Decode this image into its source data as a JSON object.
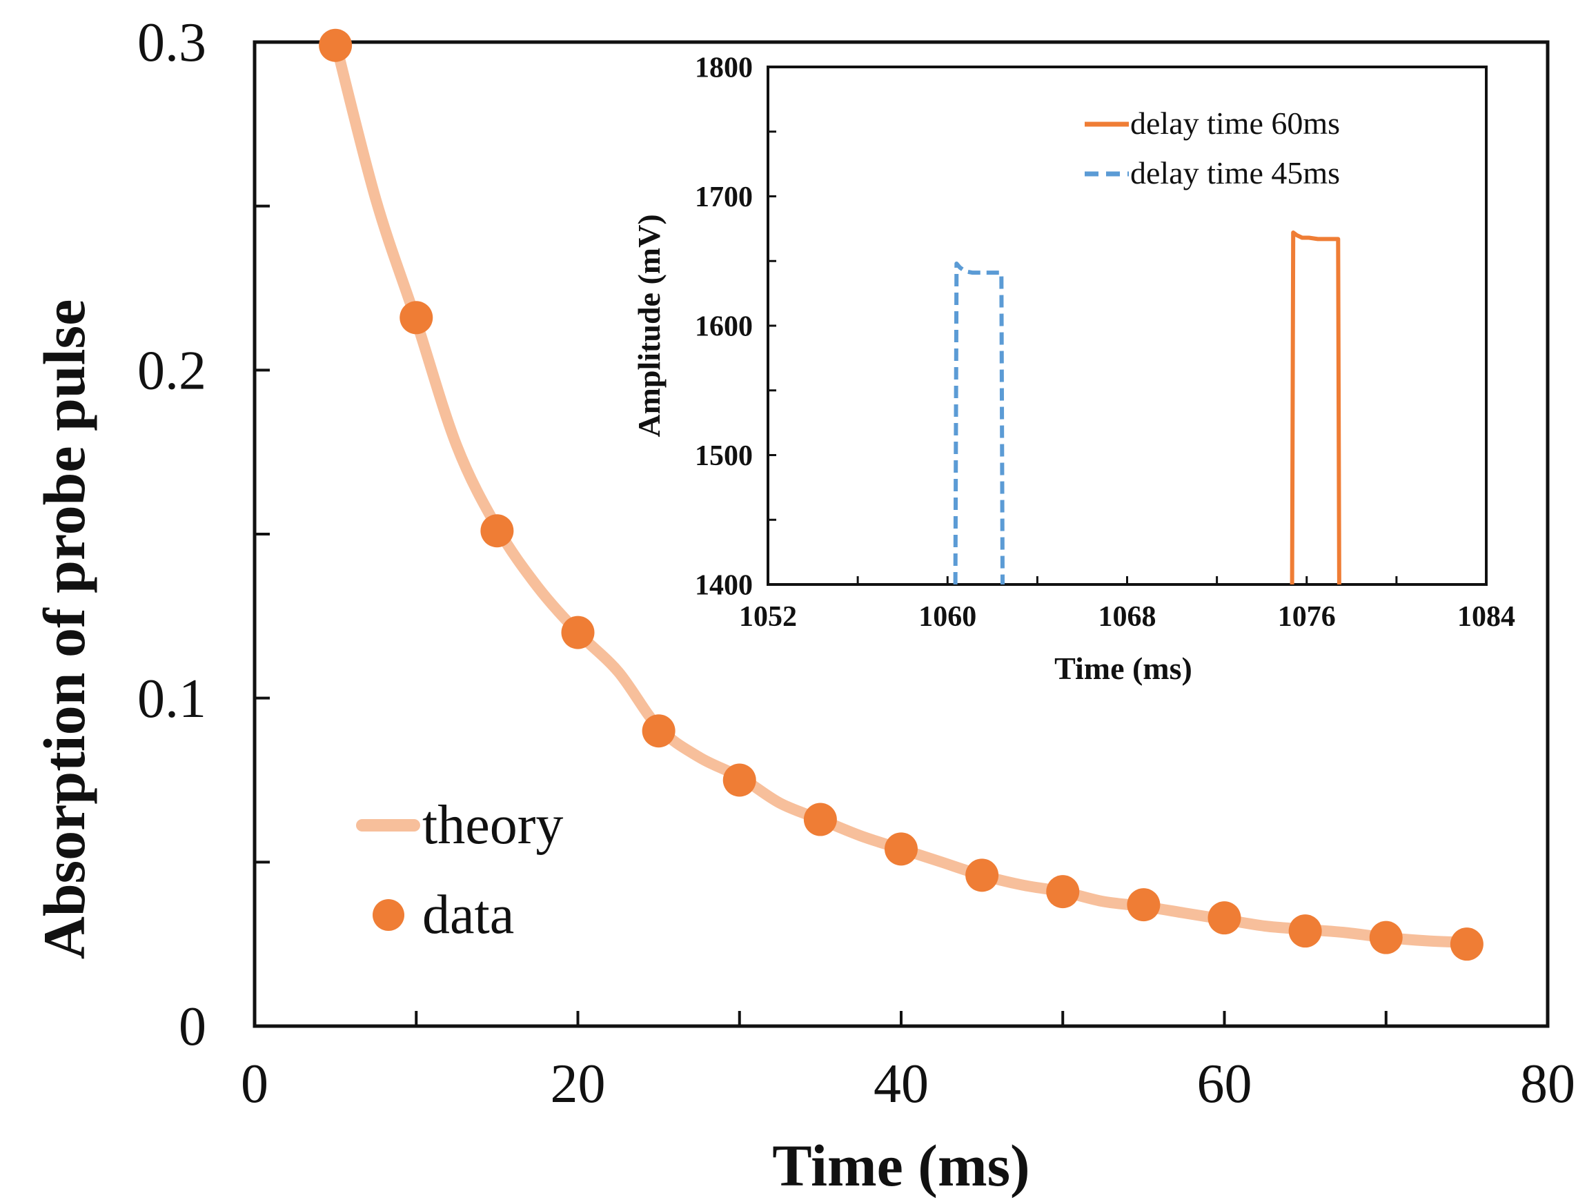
{
  "colors": {
    "theory_line": "#f7bf9b",
    "data_point": "#ef7d35",
    "inset_series_60": "#ef7d35",
    "inset_series_45": "#5b9bd5",
    "axis": "#111111"
  },
  "chart_data": [
    {
      "id": "main",
      "type": "scatter",
      "title": "",
      "xlabel": "Time (ms)",
      "ylabel": "Absorption of probe pulse",
      "xlim": [
        0,
        80
      ],
      "ylim": [
        0,
        0.3
      ],
      "x_ticks": [
        0,
        10,
        20,
        30,
        40,
        50,
        60,
        70,
        80
      ],
      "x_tick_labels": [
        {
          "value": 0,
          "label": "0"
        },
        {
          "value": 20,
          "label": "20"
        },
        {
          "value": 40,
          "label": "40"
        },
        {
          "value": 60,
          "label": "60"
        },
        {
          "value": 80,
          "label": "80"
        }
      ],
      "y_ticks": [
        0,
        0.05,
        0.1,
        0.15,
        0.2,
        0.25,
        0.3
      ],
      "y_tick_labels": [
        {
          "value": 0,
          "label": "0"
        },
        {
          "value": 0.1,
          "label": "0.1"
        },
        {
          "value": 0.2,
          "label": "0.2"
        },
        {
          "value": 0.3,
          "label": "0.3"
        }
      ],
      "legend_position": "lower-left",
      "series": [
        {
          "name": "theory",
          "kind": "line",
          "model": "a + b*exp(-t/tau) + c*exp(-t/tau2)",
          "x": [
            5,
            7.5,
            10,
            12.5,
            15,
            17.5,
            20,
            22.5,
            25,
            27.5,
            30,
            32.5,
            35,
            37.5,
            40,
            42.5,
            45,
            47.5,
            50,
            52.5,
            55,
            57.5,
            60,
            62.5,
            65,
            67.5,
            70,
            72.5,
            75
          ],
          "y": [
            0.3,
            0.252,
            0.215,
            0.177,
            0.152,
            0.134,
            0.12,
            0.108,
            0.091,
            0.082,
            0.076,
            0.068,
            0.063,
            0.058,
            0.054,
            0.05,
            0.046,
            0.043,
            0.041,
            0.038,
            0.0365,
            0.0345,
            0.0325,
            0.0305,
            0.0295,
            0.0285,
            0.027,
            0.026,
            0.0255
          ]
        },
        {
          "name": "data",
          "kind": "scatter",
          "x": [
            5,
            10,
            15,
            20,
            25,
            30,
            35,
            40,
            45,
            50,
            55,
            60,
            65,
            70,
            75
          ],
          "y": [
            0.299,
            0.216,
            0.151,
            0.12,
            0.09,
            0.075,
            0.063,
            0.054,
            0.046,
            0.041,
            0.037,
            0.033,
            0.029,
            0.027,
            0.025
          ]
        }
      ]
    },
    {
      "id": "inset",
      "type": "line",
      "title": "",
      "xlabel": "Time (ms)",
      "ylabel": "Amplitude (mV)",
      "xlim": [
        1052,
        1084
      ],
      "ylim": [
        1400,
        1800
      ],
      "x_ticks": [
        1052,
        1056,
        1060,
        1064,
        1068,
        1072,
        1076,
        1080,
        1084
      ],
      "x_tick_labels": [
        {
          "value": 1052,
          "label": "1052"
        },
        {
          "value": 1060,
          "label": "1060"
        },
        {
          "value": 1068,
          "label": "1068"
        },
        {
          "value": 1076,
          "label": "1076"
        },
        {
          "value": 1084,
          "label": "1084"
        }
      ],
      "y_ticks": [
        1400,
        1450,
        1500,
        1550,
        1600,
        1650,
        1700,
        1750,
        1800
      ],
      "y_tick_labels": [
        {
          "value": 1400,
          "label": "1400"
        },
        {
          "value": 1500,
          "label": "1500"
        },
        {
          "value": 1600,
          "label": "1600"
        },
        {
          "value": 1700,
          "label": "1700"
        },
        {
          "value": 1800,
          "label": "1800"
        }
      ],
      "legend_position": "top-right",
      "series": [
        {
          "name": "delay time 60ms",
          "style": "solid",
          "x": [
            1075.35,
            1075.4,
            1075.55,
            1075.8,
            1076.1,
            1076.5,
            1076.9,
            1077.3,
            1077.4,
            1077.45
          ],
          "y": [
            1400,
            1672,
            1670,
            1668,
            1668,
            1667,
            1667,
            1667,
            1667,
            1400
          ]
        },
        {
          "name": "delay time 45ms",
          "style": "dashed",
          "x": [
            1060.35,
            1060.4,
            1060.55,
            1060.8,
            1061.1,
            1061.5,
            1061.9,
            1062.3,
            1062.4,
            1062.45
          ],
          "y": [
            1400,
            1648,
            1645,
            1642,
            1641,
            1641,
            1641,
            1641,
            1641,
            1400
          ]
        }
      ]
    }
  ]
}
